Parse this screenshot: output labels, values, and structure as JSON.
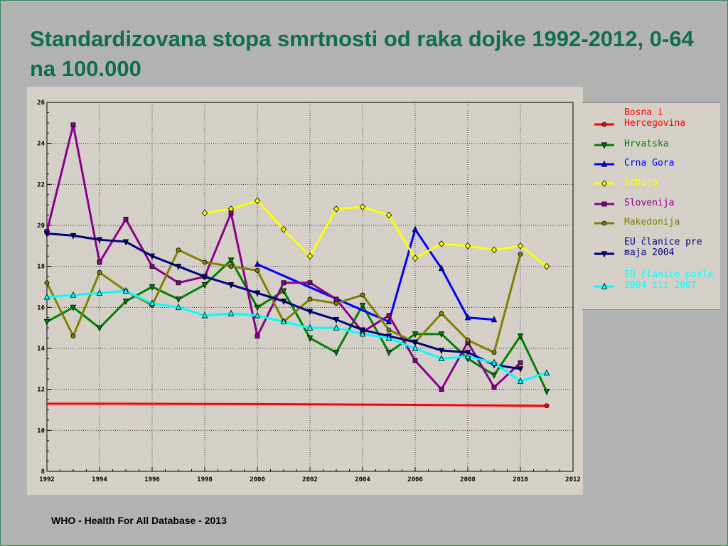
{
  "slide": {
    "title": "Standardizovana stopa smrtnosti od raka dojke 1992-2012, 0-64 na 100.000",
    "source": "WHO - Health For All Database - 2013"
  },
  "chart_data": {
    "type": "line",
    "title": "",
    "xlabel": "",
    "ylabel": "",
    "xlim": [
      1992,
      2012
    ],
    "ylim": [
      8,
      26
    ],
    "xticks": [
      1992,
      1994,
      1996,
      1998,
      2000,
      2002,
      2004,
      2006,
      2008,
      2010,
      2012
    ],
    "yticks": [
      8,
      10,
      12,
      14,
      16,
      18,
      20,
      22,
      24,
      26
    ],
    "grid": true,
    "legend_position": "right",
    "series": [
      {
        "name": "Bosna i Hercegovina",
        "color": "#ff0000",
        "marker": "circle",
        "points": [
          [
            1992,
            11.3
          ],
          [
            1995,
            11.3
          ],
          [
            2000,
            11.28
          ],
          [
            2005,
            11.25
          ],
          [
            2011,
            11.2
          ]
        ],
        "marker_points": [
          [
            2011,
            11.2
          ]
        ]
      },
      {
        "name": "Hrvatska",
        "color": "#008000",
        "marker": "triangle-down",
        "points": [
          [
            1992,
            15.3
          ],
          [
            1993,
            16.0
          ],
          [
            1994,
            15.0
          ],
          [
            1995,
            16.3
          ],
          [
            1996,
            17.0
          ],
          [
            1997,
            16.4
          ],
          [
            1998,
            17.1
          ],
          [
            1999,
            18.3
          ],
          [
            2000,
            16.0
          ],
          [
            2001,
            16.8
          ],
          [
            2002,
            14.5
          ],
          [
            2003,
            13.8
          ],
          [
            2004,
            16.1
          ],
          [
            2005,
            13.8
          ],
          [
            2006,
            14.7
          ],
          [
            2007,
            14.7
          ],
          [
            2008,
            13.5
          ],
          [
            2009,
            12.7
          ],
          [
            2010,
            14.6
          ],
          [
            2011,
            11.9
          ]
        ]
      },
      {
        "name": "Crna Gora",
        "color": "#0000ff",
        "marker": "triangle-up",
        "points": [
          [
            2000,
            18.1
          ],
          [
            2005,
            15.3
          ],
          [
            2006,
            19.8
          ],
          [
            2007,
            17.9
          ],
          [
            2008,
            15.5
          ],
          [
            2009,
            15.4
          ]
        ]
      },
      {
        "name": "Srbija",
        "color": "#ffff00",
        "marker": "diamond",
        "points": [
          [
            1998,
            20.6
          ],
          [
            1999,
            20.8
          ],
          [
            2000,
            21.2
          ],
          [
            2001,
            19.8
          ],
          [
            2002,
            18.5
          ],
          [
            2003,
            20.8
          ],
          [
            2004,
            20.9
          ],
          [
            2005,
            20.5
          ],
          [
            2006,
            18.4
          ],
          [
            2007,
            19.1
          ],
          [
            2008,
            19.0
          ],
          [
            2009,
            18.8
          ],
          [
            2010,
            19.0
          ],
          [
            2011,
            18.0
          ]
        ]
      },
      {
        "name": "Slovenija",
        "color": "#8b008b",
        "marker": "square",
        "points": [
          [
            1992,
            19.7
          ],
          [
            1993,
            24.9
          ],
          [
            1994,
            18.2
          ],
          [
            1995,
            20.3
          ],
          [
            1996,
            18.0
          ],
          [
            1997,
            17.2
          ],
          [
            1998,
            17.5
          ],
          [
            1999,
            20.6
          ],
          [
            2000,
            14.6
          ],
          [
            2001,
            17.2
          ],
          [
            2002,
            17.2
          ],
          [
            2003,
            16.4
          ],
          [
            2004,
            14.8
          ],
          [
            2005,
            15.6
          ],
          [
            2006,
            13.4
          ],
          [
            2007,
            12.0
          ],
          [
            2008,
            14.3
          ],
          [
            2009,
            12.1
          ],
          [
            2010,
            13.3
          ]
        ]
      },
      {
        "name": "Makedonija",
        "color": "#808000",
        "marker": "circle",
        "points": [
          [
            1992,
            17.2
          ],
          [
            1993,
            14.6
          ],
          [
            1994,
            17.7
          ],
          [
            1995,
            16.8
          ],
          [
            1996,
            16.1
          ],
          [
            1997,
            18.8
          ],
          [
            1998,
            18.2
          ],
          [
            1999,
            18.0
          ],
          [
            2000,
            17.8
          ],
          [
            2001,
            15.3
          ],
          [
            2002,
            16.4
          ],
          [
            2003,
            16.2
          ],
          [
            2004,
            16.6
          ],
          [
            2005,
            14.9
          ],
          [
            2006,
            14.3
          ],
          [
            2007,
            15.7
          ],
          [
            2008,
            14.4
          ],
          [
            2009,
            13.8
          ],
          [
            2010,
            18.6
          ]
        ]
      },
      {
        "name": "EU članice pre maja 2004",
        "color": "#00007f",
        "marker": "triangle-down",
        "points": [
          [
            1992,
            19.6
          ],
          [
            1993,
            19.5
          ],
          [
            1994,
            19.3
          ],
          [
            1995,
            19.2
          ],
          [
            1996,
            18.5
          ],
          [
            1997,
            18.0
          ],
          [
            1998,
            17.5
          ],
          [
            1999,
            17.1
          ],
          [
            2000,
            16.7
          ],
          [
            2001,
            16.3
          ],
          [
            2002,
            15.8
          ],
          [
            2003,
            15.4
          ],
          [
            2004,
            14.9
          ],
          [
            2005,
            14.6
          ],
          [
            2006,
            14.3
          ],
          [
            2007,
            13.9
          ],
          [
            2008,
            13.8
          ],
          [
            2009,
            13.2
          ],
          [
            2010,
            13.0
          ]
        ]
      },
      {
        "name": "EU članice posle 2004 ili 2007",
        "color": "#00ffff",
        "marker": "triangle-up",
        "points": [
          [
            1992,
            16.5
          ],
          [
            1993,
            16.6
          ],
          [
            1994,
            16.7
          ],
          [
            1995,
            16.8
          ],
          [
            1996,
            16.2
          ],
          [
            1997,
            16.0
          ],
          [
            1998,
            15.6
          ],
          [
            1999,
            15.7
          ],
          [
            2000,
            15.6
          ],
          [
            2001,
            15.3
          ],
          [
            2002,
            15.0
          ],
          [
            2003,
            15.0
          ],
          [
            2004,
            14.7
          ],
          [
            2005,
            14.5
          ],
          [
            2006,
            14.0
          ],
          [
            2007,
            13.5
          ],
          [
            2008,
            13.6
          ],
          [
            2009,
            13.3
          ],
          [
            2010,
            12.4
          ],
          [
            2011,
            12.8
          ]
        ]
      }
    ]
  }
}
